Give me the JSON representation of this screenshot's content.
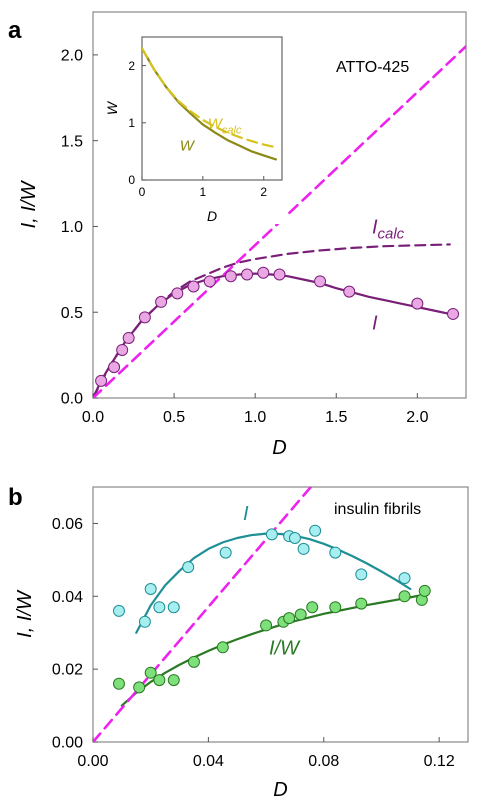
{
  "chart_data": [
    {
      "panel": "a",
      "type": "scatter",
      "annotation": "ATTO-425",
      "xlabel": "D",
      "ylabel": "I, I/W",
      "xlim": [
        0,
        2.3
      ],
      "ylim": [
        0,
        2.25
      ],
      "xticks": [
        0.0,
        0.5,
        1.0,
        1.5,
        2.0
      ],
      "xtick_labels": [
        "0.0",
        "0.5",
        "1.0",
        "1.5",
        "2.0"
      ],
      "yticks": [
        0.0,
        0.5,
        1.0,
        1.5,
        2.0
      ],
      "ytick_labels": [
        "0.0",
        "0.5",
        "1.0",
        "1.5",
        "2.0"
      ],
      "series": [
        {
          "name": "I",
          "kind": "points",
          "color": "#e9a8e4",
          "edge": "#7a1f78",
          "x": [
            0.05,
            0.13,
            0.18,
            0.22,
            0.32,
            0.42,
            0.52,
            0.62,
            0.72,
            0.85,
            0.95,
            1.05,
            1.15,
            1.4,
            1.58,
            2.0,
            2.22
          ],
          "y": [
            0.1,
            0.18,
            0.28,
            0.35,
            0.47,
            0.56,
            0.61,
            0.65,
            0.68,
            0.71,
            0.72,
            0.73,
            0.72,
            0.68,
            0.62,
            0.55,
            0.49
          ]
        },
        {
          "name": "I",
          "kind": "line",
          "color": "#7a1f78",
          "x": [
            0.0,
            0.05,
            0.1,
            0.2,
            0.3,
            0.4,
            0.5,
            0.6,
            0.7,
            0.8,
            0.9,
            1.0,
            1.1,
            1.2,
            1.3,
            1.4,
            1.5,
            1.6,
            1.7,
            1.8,
            1.9,
            2.0,
            2.1,
            2.2
          ],
          "y": [
            0.0,
            0.1,
            0.18,
            0.33,
            0.45,
            0.54,
            0.61,
            0.66,
            0.69,
            0.71,
            0.72,
            0.725,
            0.72,
            0.71,
            0.69,
            0.67,
            0.64,
            0.615,
            0.59,
            0.57,
            0.55,
            0.53,
            0.51,
            0.49
          ]
        },
        {
          "name": "I_calc",
          "kind": "dashed-line",
          "color": "#7a1f78",
          "x": [
            0.0,
            0.1,
            0.2,
            0.3,
            0.4,
            0.5,
            0.6,
            0.7,
            0.8,
            0.9,
            1.0,
            1.2,
            1.4,
            1.6,
            1.8,
            2.0,
            2.2
          ],
          "y": [
            0.0,
            0.18,
            0.33,
            0.45,
            0.54,
            0.62,
            0.68,
            0.72,
            0.76,
            0.79,
            0.81,
            0.84,
            0.86,
            0.875,
            0.885,
            0.89,
            0.895
          ]
        },
        {
          "name": "diagonal",
          "kind": "dashed-line",
          "color": "#ee22ee",
          "x": [
            0.0,
            2.3
          ],
          "y": [
            0.0,
            2.05
          ]
        }
      ],
      "labels": [
        {
          "main": "I",
          "sub": "calc",
          "x": 1.72,
          "y": 0.96
        },
        {
          "main": "I",
          "sub": "",
          "x": 1.72,
          "y": 0.4
        }
      ],
      "inset": {
        "xlabel": "D",
        "ylabel": "W",
        "xlim": [
          0,
          2.3
        ],
        "ylim": [
          0,
          2.5
        ],
        "xticks": [
          0,
          1,
          2
        ],
        "xtick_labels": [
          "0",
          "1",
          "2"
        ],
        "yticks": [
          0,
          1,
          2
        ],
        "ytick_labels": [
          "0",
          "1",
          "2"
        ],
        "series": [
          {
            "name": "W",
            "kind": "line",
            "color": "#8c8a14",
            "x": [
              0.0,
              0.2,
              0.4,
              0.6,
              0.8,
              1.0,
              1.2,
              1.4,
              1.6,
              1.8,
              2.0,
              2.2
            ],
            "y": [
              2.3,
              1.93,
              1.62,
              1.36,
              1.16,
              0.97,
              0.83,
              0.7,
              0.6,
              0.5,
              0.43,
              0.36
            ]
          },
          {
            "name": "W_calc",
            "kind": "dashed-line",
            "color": "#d6c21c",
            "x": [
              0.0,
              0.2,
              0.4,
              0.6,
              0.8,
              1.0,
              1.2,
              1.4,
              1.6,
              1.8,
              2.0,
              2.2
            ],
            "y": [
              2.3,
              1.93,
              1.62,
              1.38,
              1.2,
              1.05,
              0.93,
              0.83,
              0.75,
              0.68,
              0.62,
              0.57
            ]
          }
        ],
        "labels": [
          {
            "main": "W",
            "sub": "calc",
            "x": 1.08,
            "y": 0.9,
            "color": "#d6c21c"
          },
          {
            "main": "W",
            "sub": "",
            "x": 0.62,
            "y": 0.52,
            "color": "#8c8a14"
          }
        ]
      }
    },
    {
      "panel": "b",
      "type": "scatter",
      "annotation": "insulin fibrils",
      "xlabel": "D",
      "ylabel": "I, I/W",
      "xlim": [
        0,
        0.13
      ],
      "ylim": [
        0,
        0.07
      ],
      "xticks": [
        0.0,
        0.04,
        0.08,
        0.12
      ],
      "xtick_labels": [
        "0.00",
        "0.04",
        "0.08",
        "0.12"
      ],
      "yticks": [
        0.0,
        0.02,
        0.04,
        0.06
      ],
      "ytick_labels": [
        "0.00",
        "0.02",
        "0.04",
        "0.06"
      ],
      "series": [
        {
          "name": "I",
          "kind": "points",
          "color": "#a6eef0",
          "edge": "#1f8f96",
          "x": [
            0.009,
            0.018,
            0.02,
            0.023,
            0.028,
            0.033,
            0.046,
            0.062,
            0.068,
            0.07,
            0.073,
            0.077,
            0.084,
            0.093,
            0.108
          ],
          "y": [
            0.036,
            0.033,
            0.042,
            0.037,
            0.037,
            0.048,
            0.052,
            0.057,
            0.0565,
            0.056,
            0.053,
            0.058,
            0.052,
            0.046,
            0.045
          ]
        },
        {
          "name": "I",
          "kind": "line",
          "color": "#1f8f96",
          "x": [
            0.015,
            0.02,
            0.025,
            0.03,
            0.035,
            0.04,
            0.045,
            0.05,
            0.055,
            0.06,
            0.065,
            0.07,
            0.075,
            0.08,
            0.085,
            0.09,
            0.095,
            0.1,
            0.105,
            0.11
          ],
          "y": [
            0.03,
            0.0375,
            0.043,
            0.047,
            0.0505,
            0.053,
            0.0548,
            0.056,
            0.0568,
            0.0572,
            0.0571,
            0.0566,
            0.0557,
            0.0544,
            0.0528,
            0.051,
            0.049,
            0.0468,
            0.0445,
            0.042
          ]
        },
        {
          "name": "I/W",
          "kind": "points",
          "color": "#7ee07a",
          "edge": "#2a7a24",
          "x": [
            0.009,
            0.016,
            0.02,
            0.023,
            0.028,
            0.035,
            0.045,
            0.06,
            0.066,
            0.068,
            0.072,
            0.076,
            0.084,
            0.093,
            0.108,
            0.114,
            0.115
          ],
          "y": [
            0.016,
            0.015,
            0.019,
            0.017,
            0.017,
            0.022,
            0.026,
            0.032,
            0.033,
            0.034,
            0.035,
            0.037,
            0.037,
            0.038,
            0.04,
            0.039,
            0.0415
          ]
        },
        {
          "name": "I/W",
          "kind": "line",
          "color": "#2a7a24",
          "x": [
            0.01,
            0.015,
            0.02,
            0.025,
            0.03,
            0.035,
            0.04,
            0.045,
            0.05,
            0.055,
            0.06,
            0.065,
            0.07,
            0.075,
            0.08,
            0.085,
            0.09,
            0.095,
            0.1,
            0.105,
            0.11,
            0.115
          ],
          "y": [
            0.01,
            0.0135,
            0.0165,
            0.019,
            0.0212,
            0.0232,
            0.025,
            0.0267,
            0.0282,
            0.0296,
            0.0309,
            0.0321,
            0.0332,
            0.0342,
            0.0352,
            0.036,
            0.0368,
            0.0376,
            0.0383,
            0.039,
            0.0397,
            0.0405
          ]
        },
        {
          "name": "diagonal",
          "kind": "dashed-line",
          "color": "#ee22ee",
          "x": [
            0.0,
            0.0755
          ],
          "y": [
            0.0,
            0.07
          ]
        }
      ],
      "labels": [
        {
          "main": "I",
          "sub": "",
          "x": 0.052,
          "y": 0.061,
          "color": "#1f8f96"
        },
        {
          "main": "I/W",
          "sub": "",
          "x": 0.061,
          "y": 0.024,
          "color": "#2a7a24"
        }
      ]
    }
  ]
}
